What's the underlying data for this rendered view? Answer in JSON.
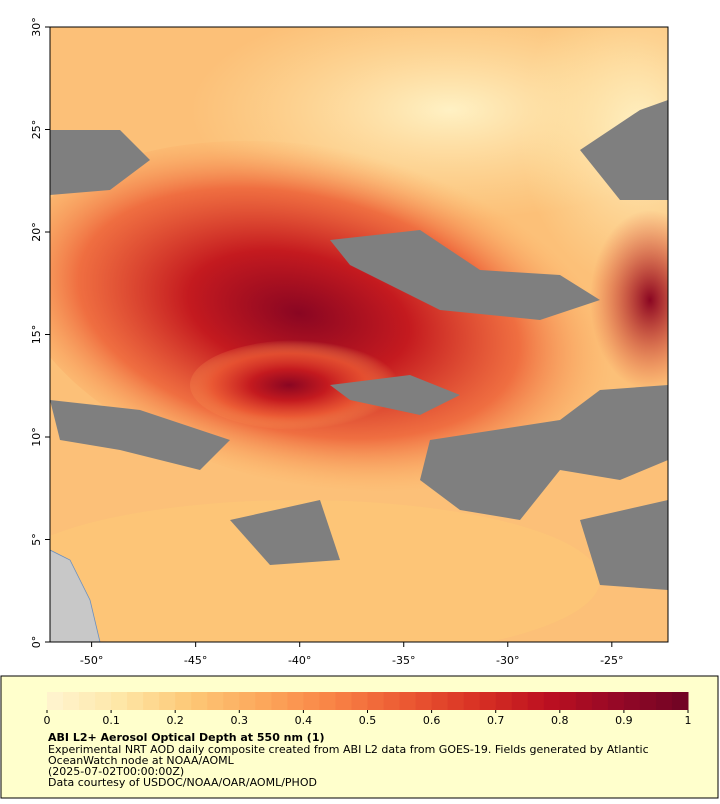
{
  "chart_data": {
    "type": "map",
    "xlim": [
      -52,
      -22.3
    ],
    "ylim": [
      0,
      30
    ],
    "xticks": [
      {
        "value": -50,
        "label": "-50°"
      },
      {
        "value": -45,
        "label": "-45°"
      },
      {
        "value": -40,
        "label": "-40°"
      },
      {
        "value": -35,
        "label": "-35°"
      },
      {
        "value": -30,
        "label": "-30°"
      },
      {
        "value": -25,
        "label": "-25°"
      }
    ],
    "yticks": [
      {
        "value": 0,
        "label": "0°"
      },
      {
        "value": 5,
        "label": "5°"
      },
      {
        "value": 10,
        "label": "10°"
      },
      {
        "value": 15,
        "label": "15°"
      },
      {
        "value": 20,
        "label": "20°"
      },
      {
        "value": 25,
        "label": "25°"
      },
      {
        "value": 30,
        "label": "30°"
      }
    ],
    "colorbar": {
      "lim": [
        0,
        1
      ],
      "ticks": [
        0,
        0.1,
        0.2,
        0.3,
        0.4,
        0.5,
        0.6,
        0.7,
        0.8,
        0.9,
        1
      ],
      "colors": [
        "#fff5d0",
        "#fee7a8",
        "#fdc877",
        "#fca85c",
        "#f98446",
        "#ec5a33",
        "#d93324",
        "#bd1020",
        "#950826",
        "#6f0424"
      ]
    },
    "title": "ABI L2+ Aerosol Optical Depth at 550 nm (1)",
    "description": [
      "Experimental NRT AOD daily composite created from ABI L2 data from GOES-19. Fields generated by Atlantic",
      "OceanWatch node at NOAA/AOML",
      "(2025-07-02T00:00:00Z)",
      "Data courtesy of USDOC/NOAA/OAR/AOML/PHOD"
    ]
  }
}
